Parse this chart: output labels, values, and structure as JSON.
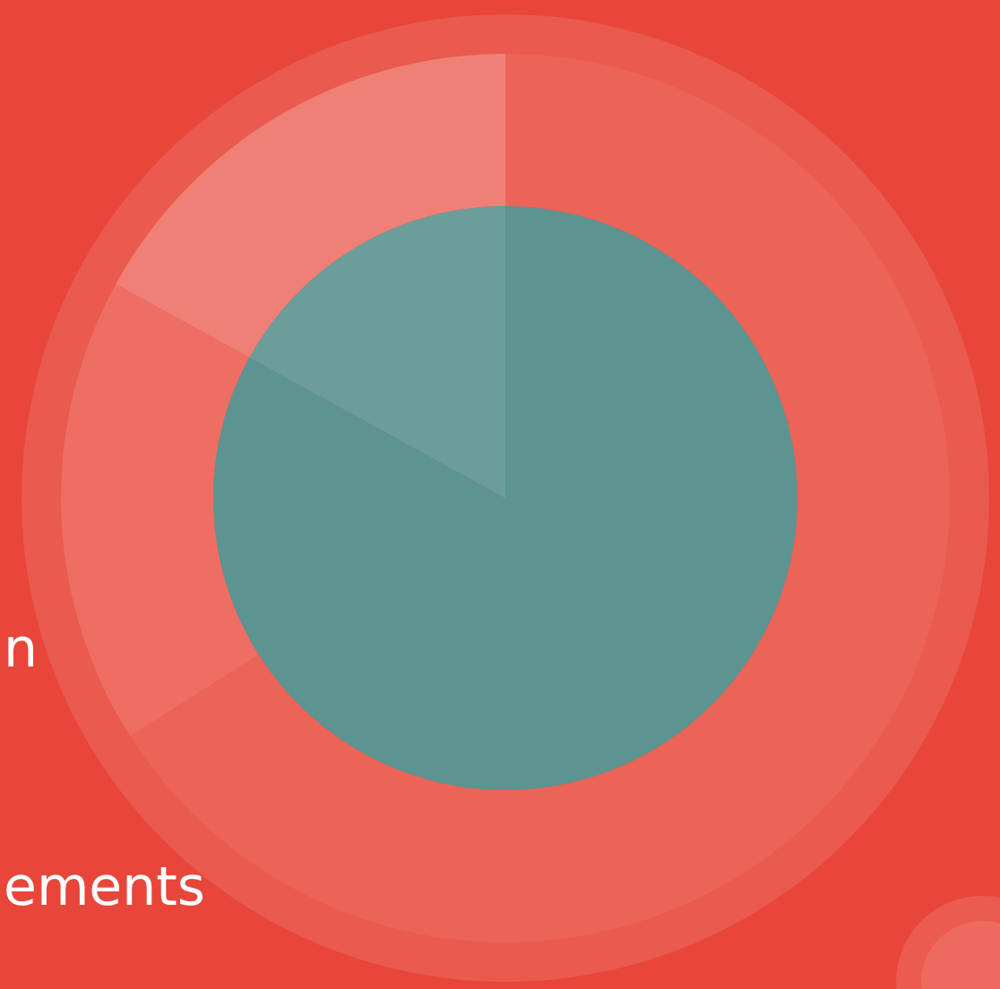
{
  "chart_data": [
    {
      "type": "donut",
      "categories": [
        null,
        null,
        null
      ],
      "values": [
        66,
        17,
        17
      ],
      "colors": [
        "#ec6358",
        "#ee6e64",
        "#f08076"
      ],
      "annotations": [
        "n",
        "ements"
      ]
    },
    {
      "type": "pie",
      "categories": [
        null,
        null
      ],
      "values": [
        83,
        17
      ],
      "colors": [
        "#5c9491",
        "#6b9e9b"
      ]
    }
  ]
}
